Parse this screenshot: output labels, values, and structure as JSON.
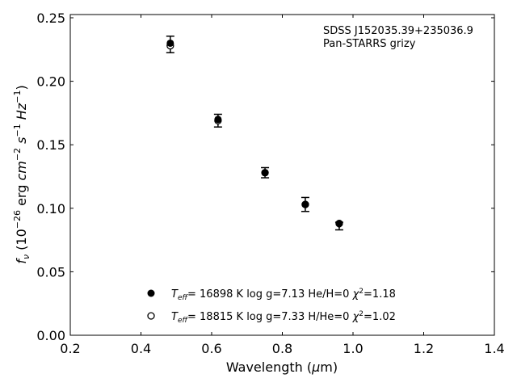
{
  "chart_data": {
    "type": "scatter",
    "xlabel": "Wavelength (μm)",
    "ylabel": "f_ν (10^-26 erg cm^-2 s^-1 Hz^-1)",
    "xlim": [
      0.2,
      1.4
    ],
    "ylim": [
      0.0,
      0.252
    ],
    "xticks": [
      "0.2",
      "0.4",
      "0.6",
      "0.8",
      "1.0",
      "1.2",
      "1.4"
    ],
    "yticks": [
      "0.00",
      "0.05",
      "0.10",
      "0.15",
      "0.20",
      "0.25"
    ],
    "grid": false,
    "annotation": [
      "SDSS J152035.39+235036.9",
      "Pan-STARRS grizy"
    ],
    "observed": {
      "x": [
        0.483,
        0.618,
        0.751,
        0.865,
        0.961
      ],
      "y": [
        0.229,
        0.169,
        0.128,
        0.103,
        0.086
      ],
      "yerr": [
        0.0065,
        0.005,
        0.004,
        0.0055,
        0.003
      ]
    },
    "series": [
      {
        "name": "T_eff= 16898 K  log g=7.13  He/H=0  χ²=1.18",
        "marker": "filled-circle",
        "x": [
          0.483,
          0.618,
          0.751,
          0.865,
          0.961
        ],
        "y": [
          0.23,
          0.17,
          0.128,
          0.103,
          0.088
        ]
      },
      {
        "name": "T_eff= 18815 K  log g=7.33  H/He=0  χ²=1.02",
        "marker": "open-circle",
        "x": [
          0.483,
          0.618,
          0.751,
          0.865,
          0.961
        ],
        "y": [
          0.228,
          0.169,
          0.128,
          0.103,
          0.088
        ]
      }
    ],
    "legend_placement": "bottom-center",
    "legend": [
      {
        "teff": "16898 K",
        "rest": "log g=7.13  He/H=0",
        "chi": "=1.18"
      },
      {
        "teff": "18815 K",
        "rest": "log g=7.33  H/He=0",
        "chi": "=1.02"
      }
    ]
  }
}
